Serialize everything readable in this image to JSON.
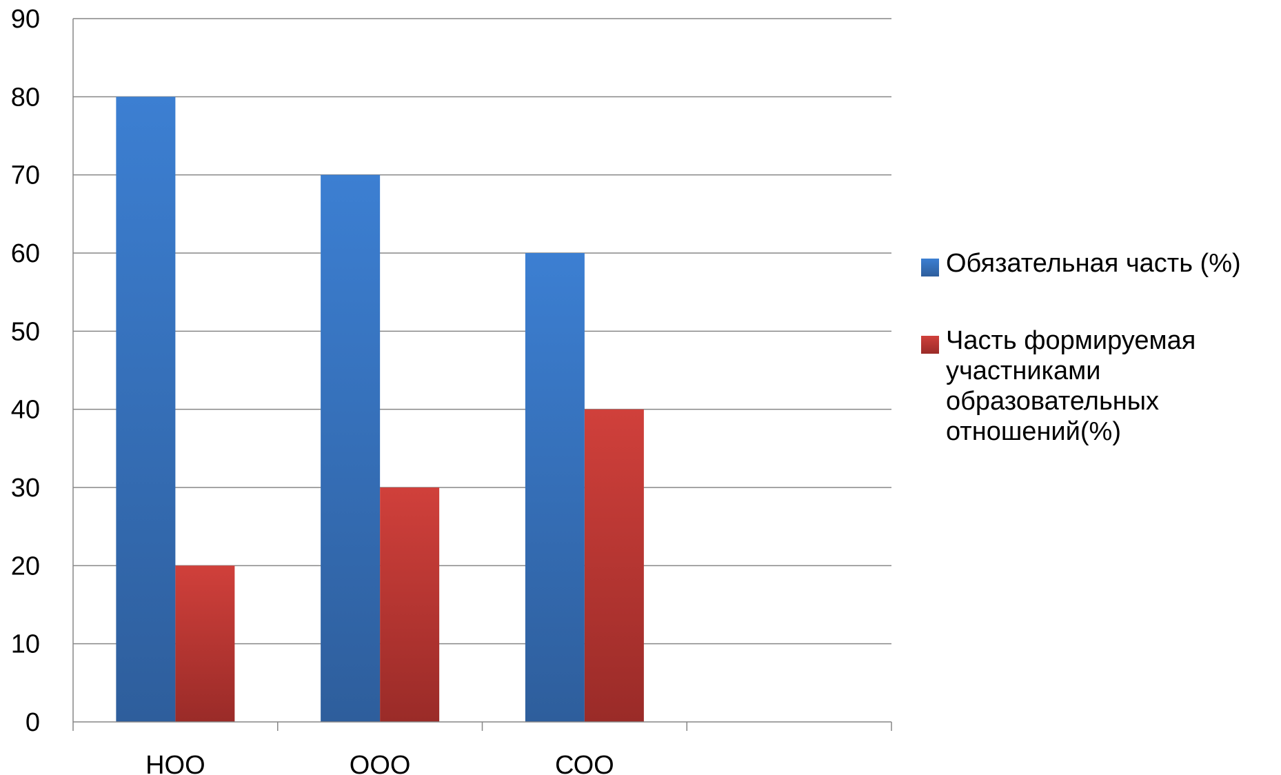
{
  "chart_data": {
    "type": "bar",
    "categories": [
      "НОО",
      "ООО",
      "СОО",
      ""
    ],
    "series": [
      {
        "name": "Обязательная часть (%)",
        "values": [
          80,
          70,
          60,
          null
        ],
        "color": "#3A75C4"
      },
      {
        "name": "Часть формируемая участниками образовательных отношений(%)",
        "values": [
          20,
          30,
          40,
          null
        ],
        "color": "#C53D38"
      }
    ],
    "ylim": [
      0,
      90
    ],
    "yticks": [
      0,
      10,
      20,
      30,
      40,
      50,
      60,
      70,
      80,
      90
    ],
    "grid": true,
    "legend_position": "right",
    "title": "",
    "xlabel": "",
    "ylabel": ""
  }
}
